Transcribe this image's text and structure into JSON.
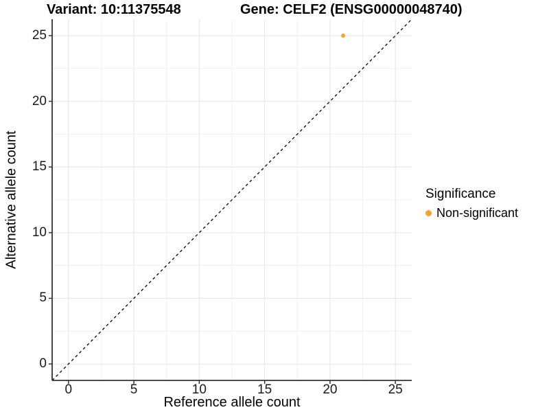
{
  "chart_data": {
    "type": "scatter",
    "title_left": "Variant: 10:11375548",
    "title_right": "Gene: CELF2 (ENSG00000048740)",
    "xlabel": "Reference allele count",
    "ylabel": "Alternative allele count",
    "xlim": [
      -1.25,
      26.25
    ],
    "ylim": [
      -1.25,
      26.25
    ],
    "x_ticks": [
      0,
      5,
      10,
      15,
      20,
      25
    ],
    "y_ticks": [
      0,
      5,
      10,
      15,
      20,
      25
    ],
    "x_minor_ticks": [
      2.5,
      7.5,
      12.5,
      17.5,
      22.5
    ],
    "y_minor_ticks": [
      2.5,
      7.5,
      12.5,
      17.5,
      22.5
    ],
    "grid": true,
    "identity_line": {
      "style": "dashed",
      "slope": 1,
      "intercept": 0,
      "color": "#000000"
    },
    "series": [
      {
        "name": "Non-significant",
        "color": "#FBA22D",
        "points": [
          {
            "x": 21,
            "y": 25
          }
        ]
      }
    ],
    "legend": {
      "title": "Significance",
      "position": "right",
      "items": [
        {
          "label": "Non-significant",
          "color": "#FBA22D"
        }
      ]
    },
    "style": {
      "axis_color": "#333333",
      "grid_major_color": "#e4e4e4",
      "grid_minor_color": "#f1f1f1",
      "background": "#ffffff"
    }
  }
}
